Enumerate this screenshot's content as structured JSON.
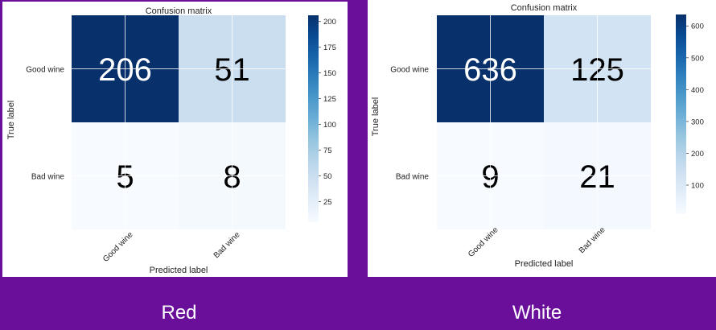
{
  "captions": [
    "Red",
    "White"
  ],
  "chart_data": [
    {
      "type": "heatmap",
      "title": "Confusion matrix",
      "xlabel": "Predicted label",
      "ylabel": "True label",
      "x_categories": [
        "Good wine",
        "Bad wine"
      ],
      "y_categories": [
        "Good wine",
        "Bad wine"
      ],
      "values": [
        [
          206,
          51
        ],
        [
          5,
          8
        ]
      ],
      "colorbar": {
        "min": 5,
        "max": 206,
        "ticks": [
          25,
          50,
          75,
          100,
          125,
          150,
          175,
          200
        ]
      },
      "colormap": "Blues"
    },
    {
      "type": "heatmap",
      "title": "Confusion matrix",
      "xlabel": "Predicted label",
      "ylabel": "True label",
      "x_categories": [
        "Good wine",
        "Bad wine"
      ],
      "y_categories": [
        "Good wine",
        "Bad wine"
      ],
      "values": [
        [
          636,
          125
        ],
        [
          9,
          21
        ]
      ],
      "colorbar": {
        "min": 9,
        "max": 636,
        "ticks": [
          100,
          200,
          300,
          400,
          500,
          600
        ]
      },
      "colormap": "Blues"
    }
  ]
}
